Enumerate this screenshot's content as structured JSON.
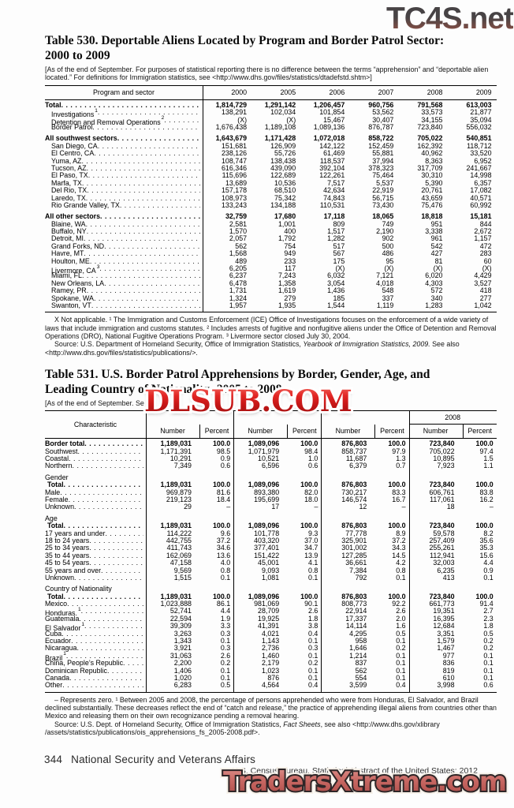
{
  "watermarks": {
    "top": "TC4S.net",
    "middle": "DLSUB.COM",
    "bottom": "TradersXtreme.com"
  },
  "footer": {
    "page_number": "344",
    "section_title": "National Security and Veterans Affairs",
    "source_line": "U.S. Census Bureau, Statistical Abstract of the United States: 2012"
  },
  "table530": {
    "title_line1": "Table 530. Deportable Aliens Located by Program and Border Patrol Sector:",
    "title_line2": "2000 to 2009",
    "note": "[As of the end of September. For purposes of statistical reporting there is no difference between the terms “apprehension” and “deportable alien located.” For definitions for Immigration statistics, see <http://www.dhs.gov/files/statistics/dtadefstd.shtm>]",
    "label_header": "Program and sector",
    "years": [
      "2000",
      "2005",
      "2006",
      "2007",
      "2008",
      "2009"
    ],
    "rows": [
      {
        "label": "Total",
        "bold": true,
        "values": [
          "1,814,729",
          "1,291,142",
          "1,206,457",
          "960,756",
          "791,568",
          "613,003"
        ]
      },
      {
        "label": "Investigations",
        "sup": "1",
        "values": [
          "138,291",
          "102,034",
          "101,854",
          "53,562",
          "33,573",
          "21,877"
        ]
      },
      {
        "label": "Detention and Removal Operations",
        "sup": "2",
        "values": [
          "(X)",
          "(X)",
          "15,467",
          "30,407",
          "34,155",
          "35,094"
        ]
      },
      {
        "label": "Border Patrol",
        "values": [
          "1,676,438",
          "1,189,108",
          "1,089,136",
          "876,787",
          "723,840",
          "556,032"
        ]
      },
      {
        "label": "All southwest sectors",
        "bold": true,
        "gap": true,
        "values": [
          "1,643,679",
          "1,171,428",
          "1,072,018",
          "858,722",
          "705,022",
          "540,851"
        ]
      },
      {
        "label": "San Diego, CA",
        "values": [
          "151,681",
          "126,909",
          "142,122",
          "152,459",
          "162,392",
          "118,712"
        ]
      },
      {
        "label": "El Centro, CA",
        "values": [
          "238,126",
          "55,726",
          "61,469",
          "55,881",
          "40,962",
          "33,520"
        ]
      },
      {
        "label": "Yuma, AZ",
        "values": [
          "108,747",
          "138,438",
          "118,537",
          "37,994",
          "8,363",
          "6,952"
        ]
      },
      {
        "label": "Tucson, AZ",
        "values": [
          "616,346",
          "439,090",
          "392,104",
          "378,323",
          "317,709",
          "241,667"
        ]
      },
      {
        "label": "El Paso, TX",
        "values": [
          "115,696",
          "122,689",
          "122,261",
          "75,464",
          "30,310",
          "14,998"
        ]
      },
      {
        "label": "Marfa, TX",
        "values": [
          "13,689",
          "10,536",
          "7,517",
          "5,537",
          "5,390",
          "6,357"
        ]
      },
      {
        "label": "Del Rio, TX",
        "values": [
          "157,178",
          "68,510",
          "42,634",
          "22,919",
          "20,761",
          "17,082"
        ]
      },
      {
        "label": "Laredo, TX",
        "values": [
          "108,973",
          "75,342",
          "74,843",
          "56,715",
          "43,659",
          "40,571"
        ]
      },
      {
        "label": "Rio Grande Valley, TX",
        "values": [
          "133,243",
          "134,188",
          "110,531",
          "73,430",
          "75,476",
          "60,992"
        ]
      },
      {
        "label": "All other sectors",
        "bold": true,
        "gap": true,
        "values": [
          "32,759",
          "17,680",
          "17,118",
          "18,065",
          "18,818",
          "15,181"
        ]
      },
      {
        "label": "Blaine, WA",
        "values": [
          "2,581",
          "1,001",
          "809",
          "749",
          "951",
          "844"
        ]
      },
      {
        "label": "Buffalo, NY",
        "values": [
          "1,570",
          "400",
          "1,517",
          "2,190",
          "3,338",
          "2,672"
        ]
      },
      {
        "label": "Detroit, MI",
        "values": [
          "2,057",
          "1,792",
          "1,282",
          "902",
          "961",
          "1,157"
        ]
      },
      {
        "label": "Grand Forks, ND",
        "values": [
          "562",
          "754",
          "517",
          "500",
          "542",
          "472"
        ]
      },
      {
        "label": "Havre, MT",
        "values": [
          "1,568",
          "949",
          "567",
          "486",
          "427",
          "283"
        ]
      },
      {
        "label": "Houlton, ME",
        "values": [
          "489",
          "233",
          "175",
          "95",
          "81",
          "60"
        ]
      },
      {
        "label": "Livermore, CA",
        "sup": "3",
        "values": [
          "6,205",
          "117",
          "(X)",
          "(X)",
          "(X)",
          "(X)"
        ]
      },
      {
        "label": "Miami, FL",
        "values": [
          "6,237",
          "7,243",
          "6,032",
          "7,121",
          "6,020",
          "4,429"
        ]
      },
      {
        "label": "New Orleans, LA",
        "values": [
          "6,478",
          "1,358",
          "3,054",
          "4,018",
          "4,303",
          "3,527"
        ]
      },
      {
        "label": "Ramey, PR",
        "values": [
          "1,731",
          "1,619",
          "1,436",
          "548",
          "572",
          "418"
        ]
      },
      {
        "label": "Spokane, WA",
        "values": [
          "1,324",
          "279",
          "185",
          "337",
          "340",
          "277"
        ]
      },
      {
        "label": "Swanton, VT",
        "values": [
          "1,957",
          "1,935",
          "1,544",
          "1,119",
          "1,283",
          "1,042"
        ]
      }
    ],
    "footnote": "X Not applicable. ¹ The Immigration and Customs Enforcement (ICE) Office of Investigations focuses on the enforcement of a wide variety of laws that include immigration and customs statutes. ² Includes arrests of fugitive and nonfugitive aliens under the Office of Detention and Removal Operations (DRO), National Fugitive Operations Program. ³ Livermore sector closed July 30, 2004.",
    "source_prefix": "Source: U.S. Department of Homeland Security, Office of Immigration Statistics, ",
    "source_italic": "Yearbook of Immigration Statistics, 2009.",
    "source_suffix": " See also <http://www.dhs.gov/files/statistics/publications/>."
  },
  "table531": {
    "title_line1": "Table 531. U.S. Border Patrol Apprehensions by Border, Gender, Age, and",
    "title_line2": "Leading Country of Nationality: 2005 to 2008",
    "note_visible": "[As of the end of September. Se",
    "label_header": "Characteristic",
    "year_headers": [
      "",
      "",
      "",
      "2008"
    ],
    "subheaders": [
      "Number",
      "Percent"
    ],
    "rows": [
      {
        "label": "Border total",
        "bold": true,
        "values": [
          "1,189,031",
          "100.0",
          "1,089,096",
          "100.0",
          "876,803",
          "100.0",
          "723,840",
          "100.0"
        ]
      },
      {
        "label": "Southwest",
        "values": [
          "1,171,391",
          "98.5",
          "1,071,979",
          "98.4",
          "858,737",
          "97.9",
          "705,022",
          "97.4"
        ]
      },
      {
        "label": "Coastal",
        "values": [
          "10,291",
          "0.9",
          "10,521",
          "1.0",
          "11,687",
          "1.3",
          "10,895",
          "1.5"
        ]
      },
      {
        "label": "Northern",
        "values": [
          "7,349",
          "0.6",
          "6,596",
          "0.6",
          "6,379",
          "0.7",
          "7,923",
          "1.1"
        ]
      },
      {
        "label": "Gender",
        "section": true
      },
      {
        "label": "Total",
        "bold": true,
        "indent": 1,
        "values": [
          "1,189,031",
          "100.0",
          "1,089,096",
          "100.0",
          "876,803",
          "100.0",
          "723,840",
          "100.0"
        ]
      },
      {
        "label": "Male",
        "values": [
          "969,879",
          "81.6",
          "893,380",
          "82.0",
          "730,217",
          "83.3",
          "606,761",
          "83.8"
        ]
      },
      {
        "label": "Female",
        "values": [
          "219,123",
          "18.4",
          "195,699",
          "18.0",
          "146,574",
          "16.7",
          "117,061",
          "16.2"
        ]
      },
      {
        "label": "Unknown",
        "values": [
          "29",
          "–",
          "17",
          "–",
          "12",
          "–",
          "18",
          "–"
        ]
      },
      {
        "label": "Age",
        "section": true
      },
      {
        "label": "Total",
        "bold": true,
        "indent": 1,
        "values": [
          "1,189,031",
          "100.0",
          "1,089,096",
          "100.0",
          "876,803",
          "100.0",
          "723,840",
          "100.0"
        ]
      },
      {
        "label": "17 years and under",
        "values": [
          "114,222",
          "9.6",
          "101,778",
          "9.3",
          "77,778",
          "8.9",
          "59,578",
          "8.2"
        ]
      },
      {
        "label": "18 to 24 years",
        "values": [
          "442,755",
          "37.2",
          "403,320",
          "37.0",
          "325,901",
          "37.2",
          "257,409",
          "35.6"
        ]
      },
      {
        "label": "25 to 34 years",
        "values": [
          "411,743",
          "34.6",
          "377,401",
          "34.7",
          "301,002",
          "34.3",
          "255,261",
          "35.3"
        ]
      },
      {
        "label": "35 to 44 years",
        "values": [
          "162,069",
          "13.6",
          "151,422",
          "13.9",
          "127,285",
          "14.5",
          "112,941",
          "15.6"
        ]
      },
      {
        "label": "45 to 54 years",
        "values": [
          "47,158",
          "4.0",
          "45,001",
          "4.1",
          "36,661",
          "4.2",
          "32,003",
          "4.4"
        ]
      },
      {
        "label": "55 years and over",
        "values": [
          "9,569",
          "0.8",
          "9,093",
          "0.8",
          "7,384",
          "0.8",
          "6,235",
          "0.9"
        ]
      },
      {
        "label": "Unknown",
        "values": [
          "1,515",
          "0.1",
          "1,081",
          "0.1",
          "792",
          "0.1",
          "413",
          "0.1"
        ]
      },
      {
        "label": "Country of Nationality",
        "section": true
      },
      {
        "label": "Total",
        "bold": true,
        "indent": 1,
        "values": [
          "1,189,031",
          "100.0",
          "1,089,096",
          "100.0",
          "876,803",
          "100.0",
          "723,840",
          "100.0"
        ]
      },
      {
        "label": "Mexico",
        "values": [
          "1,023,888",
          "86.1",
          "981,069",
          "90.1",
          "808,773",
          "92.2",
          "661,773",
          "91.4"
        ]
      },
      {
        "label": "Honduras.",
        "sup": "1",
        "values": [
          "52,741",
          "4.4",
          "28,709",
          "2.6",
          "22,914",
          "2.6",
          "19,351",
          "2.7"
        ]
      },
      {
        "label": "Guatemala",
        "values": [
          "22,594",
          "1.9",
          "19,925",
          "1.8",
          "17,337",
          "2.0",
          "16,395",
          "2.3"
        ]
      },
      {
        "label": "El Salvador",
        "sup": "1",
        "values": [
          "39,309",
          "3.3",
          "41,391",
          "3.8",
          "14,114",
          "1.6",
          "12,684",
          "1.8"
        ]
      },
      {
        "label": "Cuba",
        "values": [
          "3,263",
          "0.3",
          "4,021",
          "0.4",
          "4,295",
          "0.5",
          "3,351",
          "0.5"
        ]
      },
      {
        "label": "Ecuador",
        "values": [
          "1,343",
          "0.1",
          "1,143",
          "0.1",
          "958",
          "0.1",
          "1,579",
          "0.2"
        ]
      },
      {
        "label": "Nicaragua",
        "values": [
          "3,921",
          "0.3",
          "2,736",
          "0.3",
          "1,646",
          "0.2",
          "1,467",
          "0.2"
        ]
      },
      {
        "label": "Brazil",
        "sup": "1",
        "values": [
          "31,063",
          "2.6",
          "1,460",
          "0.1",
          "1,214",
          "0.1",
          "977",
          "0.1"
        ]
      },
      {
        "label": "China, People’s Republic",
        "values": [
          "2,200",
          "0.2",
          "2,179",
          "0.2",
          "837",
          "0.1",
          "836",
          "0.1"
        ]
      },
      {
        "label": "Dominican Republic",
        "values": [
          "1,406",
          "0.1",
          "1,023",
          "0.1",
          "562",
          "0.1",
          "819",
          "0.1"
        ]
      },
      {
        "label": "Canada",
        "values": [
          "1,020",
          "0.1",
          "876",
          "0.1",
          "554",
          "0.1",
          "610",
          "0.1"
        ]
      },
      {
        "label": "Other",
        "values": [
          "6,283",
          "0.5",
          "4,564",
          "0.4",
          "3,599",
          "0.4",
          "3,998",
          "0.6"
        ]
      }
    ],
    "footnote": "– Represents zero. ¹ Between 2005 and 2008, the percentage of persons apprehended who were from Honduras, El Salvador, and Brazil declined substantially. These decreases reflect the end of “catch and release,” the practice of apprehending illegal aliens from countries other than Mexico and releasing them on their own recognizance pending a removal hearing.",
    "source_prefix": "Source: U.S. Dept. of Homeland Security, Office of Immigration Statistics, ",
    "source_italic": "Fact Sheets",
    "source_suffix": ", see also <http://www.dhs.gov/xlibrary /assets/statistics/publications/ois_apprehensions_fs_2005-2008.pdf>."
  }
}
